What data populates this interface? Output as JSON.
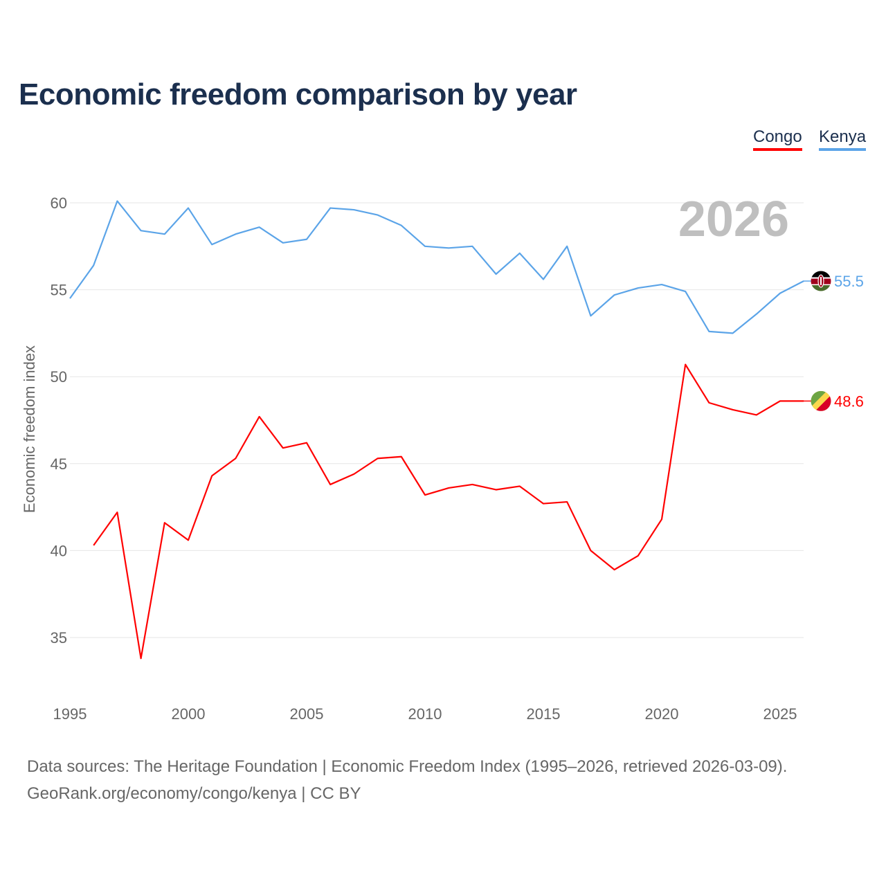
{
  "chart_data": {
    "type": "line",
    "title": "Economic freedom comparison by year",
    "xlabel": "",
    "ylabel": "Economic freedom index",
    "xlim": [
      1995,
      2026
    ],
    "ylim": [
      32,
      62
    ],
    "yticks": [
      35,
      40,
      45,
      50,
      55,
      60
    ],
    "xticks": [
      1995,
      2000,
      2005,
      2010,
      2015,
      2020,
      2025
    ],
    "grid": true,
    "legend_position": "top-right",
    "year_label": "2026",
    "series": [
      {
        "name": "Congo",
        "color": "#ff0000",
        "end_label": "48.6",
        "x": [
          1996,
          1997,
          1998,
          1999,
          2000,
          2001,
          2002,
          2003,
          2004,
          2005,
          2006,
          2007,
          2008,
          2009,
          2010,
          2011,
          2012,
          2013,
          2014,
          2015,
          2016,
          2017,
          2018,
          2019,
          2020,
          2021,
          2022,
          2023,
          2024,
          2025,
          2026
        ],
        "values": [
          40.3,
          42.2,
          33.8,
          41.6,
          40.6,
          44.3,
          45.3,
          47.7,
          45.9,
          46.2,
          43.8,
          44.4,
          45.3,
          45.4,
          43.2,
          43.6,
          43.8,
          43.5,
          43.7,
          42.7,
          42.8,
          40.0,
          38.9,
          39.7,
          41.8,
          50.7,
          48.5,
          48.1,
          47.8,
          48.6,
          48.6
        ]
      },
      {
        "name": "Kenya",
        "color": "#5ba4e8",
        "end_label": "55.5",
        "x": [
          1995,
          1996,
          1997,
          1998,
          1999,
          2000,
          2001,
          2002,
          2003,
          2004,
          2005,
          2006,
          2007,
          2008,
          2009,
          2010,
          2011,
          2012,
          2013,
          2014,
          2015,
          2016,
          2017,
          2018,
          2019,
          2020,
          2021,
          2022,
          2023,
          2024,
          2025,
          2026
        ],
        "values": [
          54.5,
          56.4,
          60.1,
          58.4,
          58.2,
          59.7,
          57.6,
          58.2,
          58.6,
          57.7,
          57.9,
          59.7,
          59.6,
          59.3,
          58.7,
          57.5,
          57.4,
          57.5,
          55.9,
          57.1,
          55.6,
          57.5,
          53.5,
          54.7,
          55.1,
          55.3,
          54.9,
          52.6,
          52.5,
          53.6,
          54.8,
          55.5
        ]
      }
    ]
  },
  "source": {
    "line1": "Data sources: The Heritage Foundation | Economic Freedom Index (1995–2026, retrieved 2026-03-09).",
    "line2": "GeoRank.org/economy/congo/kenya | CC BY"
  }
}
